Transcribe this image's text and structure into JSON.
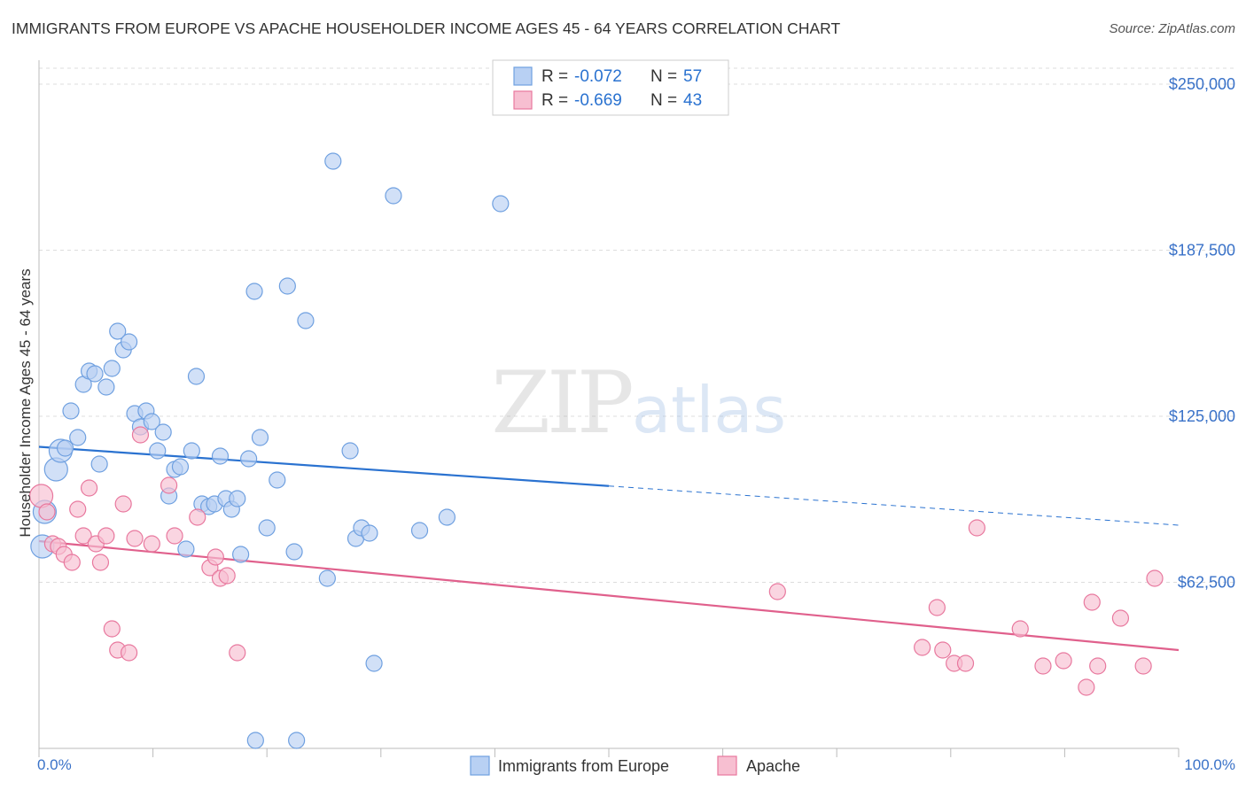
{
  "title": "IMMIGRANTS FROM EUROPE VS APACHE HOUSEHOLDER INCOME AGES 45 - 64 YEARS CORRELATION CHART",
  "source": "Source: ZipAtlas.com",
  "watermark": {
    "zip": "ZIP",
    "atlas": "atlas"
  },
  "colors": {
    "blue": "#6fa0e0",
    "blue_fill": "#b8d0f3",
    "blue_line": "#2a72d0",
    "pink": "#e8789e",
    "pink_fill": "#f7bfd1",
    "pink_line": "#e0608c",
    "axis_text": "#3a72c8",
    "grid": "#dddddd"
  },
  "legend": {
    "items": [
      {
        "r_label": "R = ",
        "r_value": "-0.072",
        "n_label": "N = ",
        "n_value": "57",
        "color": "blue"
      },
      {
        "r_label": "R = ",
        "r_value": "-0.669",
        "n_label": "N = ",
        "n_value": "43",
        "color": "pink"
      }
    ]
  },
  "bottom_legend": [
    "Immigrants from Europe",
    "Apache"
  ],
  "chart_data": {
    "type": "scatter",
    "title": "IMMIGRANTS FROM EUROPE VS APACHE HOUSEHOLDER INCOME AGES 45 - 64 YEARS CORRELATION CHART",
    "xlabel": "",
    "ylabel": "Householder Income Ages 45 - 64 years",
    "xlim": [
      0,
      100
    ],
    "ylim": [
      0,
      256000
    ],
    "x_tick_labels": [
      "0.0%",
      "100.0%"
    ],
    "y_ticks": [
      62500,
      125000,
      187500,
      250000
    ],
    "y_tick_labels": [
      "$62,500",
      "$125,000",
      "$187,500",
      "$250,000"
    ],
    "grid": true,
    "series": [
      {
        "name": "Immigrants from Europe",
        "color": "blue",
        "trend": {
          "x0": 0,
          "y0": 113500,
          "x1": 100,
          "y1": 84000,
          "solid_until": 50
        },
        "points": [
          {
            "x": 0.3,
            "y": 76000,
            "big": 1
          },
          {
            "x": 0.5,
            "y": 89000,
            "big": 1
          },
          {
            "x": 1.5,
            "y": 105000,
            "big": 1
          },
          {
            "x": 1.9,
            "y": 112000,
            "big": 1
          },
          {
            "x": 2.3,
            "y": 113000
          },
          {
            "x": 2.8,
            "y": 127000
          },
          {
            "x": 3.4,
            "y": 117000
          },
          {
            "x": 3.9,
            "y": 137000
          },
          {
            "x": 4.4,
            "y": 142000
          },
          {
            "x": 4.9,
            "y": 141000
          },
          {
            "x": 5.3,
            "y": 107000
          },
          {
            "x": 5.9,
            "y": 136000
          },
          {
            "x": 6.4,
            "y": 143000
          },
          {
            "x": 6.9,
            "y": 157000
          },
          {
            "x": 7.4,
            "y": 150000
          },
          {
            "x": 7.9,
            "y": 153000
          },
          {
            "x": 8.4,
            "y": 126000
          },
          {
            "x": 8.9,
            "y": 121000
          },
          {
            "x": 9.4,
            "y": 127000
          },
          {
            "x": 9.9,
            "y": 123000
          },
          {
            "x": 10.4,
            "y": 112000
          },
          {
            "x": 10.9,
            "y": 119000
          },
          {
            "x": 11.4,
            "y": 95000
          },
          {
            "x": 11.9,
            "y": 105000
          },
          {
            "x": 12.4,
            "y": 106000
          },
          {
            "x": 12.9,
            "y": 75000
          },
          {
            "x": 13.4,
            "y": 112000
          },
          {
            "x": 13.8,
            "y": 140000
          },
          {
            "x": 14.3,
            "y": 92000
          },
          {
            "x": 14.9,
            "y": 91000
          },
          {
            "x": 15.4,
            "y": 92000
          },
          {
            "x": 15.9,
            "y": 110000
          },
          {
            "x": 16.4,
            "y": 94000
          },
          {
            "x": 16.9,
            "y": 90000
          },
          {
            "x": 17.4,
            "y": 94000
          },
          {
            "x": 17.7,
            "y": 73000
          },
          {
            "x": 18.4,
            "y": 109000
          },
          {
            "x": 18.9,
            "y": 172000
          },
          {
            "x": 19.4,
            "y": 117000
          },
          {
            "x": 20.0,
            "y": 83000
          },
          {
            "x": 20.9,
            "y": 101000
          },
          {
            "x": 21.8,
            "y": 174000
          },
          {
            "x": 22.4,
            "y": 74000
          },
          {
            "x": 23.4,
            "y": 161000
          },
          {
            "x": 25.3,
            "y": 64000
          },
          {
            "x": 25.8,
            "y": 221000
          },
          {
            "x": 27.3,
            "y": 112000
          },
          {
            "x": 27.8,
            "y": 79000
          },
          {
            "x": 28.3,
            "y": 83000
          },
          {
            "x": 29.0,
            "y": 81000
          },
          {
            "x": 29.4,
            "y": 32000
          },
          {
            "x": 31.1,
            "y": 208000
          },
          {
            "x": 33.4,
            "y": 82000
          },
          {
            "x": 35.8,
            "y": 87000
          },
          {
            "x": 40.5,
            "y": 205000
          },
          {
            "x": 19.0,
            "y": 3000
          },
          {
            "x": 22.6,
            "y": 3000
          }
        ]
      },
      {
        "name": "Apache",
        "color": "pink",
        "trend": {
          "x0": 0,
          "y0": 78000,
          "x1": 100,
          "y1": 37000,
          "solid_until": 100
        },
        "points": [
          {
            "x": 0.2,
            "y": 95000,
            "big": 1
          },
          {
            "x": 0.7,
            "y": 89000
          },
          {
            "x": 1.2,
            "y": 77000
          },
          {
            "x": 1.7,
            "y": 76000
          },
          {
            "x": 2.2,
            "y": 73000
          },
          {
            "x": 2.9,
            "y": 70000
          },
          {
            "x": 3.4,
            "y": 90000
          },
          {
            "x": 3.9,
            "y": 80000
          },
          {
            "x": 4.4,
            "y": 98000
          },
          {
            "x": 5.0,
            "y": 77000
          },
          {
            "x": 5.4,
            "y": 70000
          },
          {
            "x": 5.9,
            "y": 80000
          },
          {
            "x": 6.4,
            "y": 45000
          },
          {
            "x": 6.9,
            "y": 37000
          },
          {
            "x": 7.4,
            "y": 92000
          },
          {
            "x": 7.9,
            "y": 36000
          },
          {
            "x": 8.4,
            "y": 79000
          },
          {
            "x": 8.9,
            "y": 118000
          },
          {
            "x": 9.9,
            "y": 77000
          },
          {
            "x": 11.4,
            "y": 99000
          },
          {
            "x": 11.9,
            "y": 80000
          },
          {
            "x": 13.9,
            "y": 87000
          },
          {
            "x": 15.0,
            "y": 68000
          },
          {
            "x": 15.5,
            "y": 72000
          },
          {
            "x": 15.9,
            "y": 64000
          },
          {
            "x": 16.5,
            "y": 65000
          },
          {
            "x": 17.4,
            "y": 36000
          },
          {
            "x": 64.8,
            "y": 59000
          },
          {
            "x": 77.5,
            "y": 38000
          },
          {
            "x": 78.8,
            "y": 53000
          },
          {
            "x": 79.3,
            "y": 37000
          },
          {
            "x": 80.3,
            "y": 32000
          },
          {
            "x": 81.3,
            "y": 32000
          },
          {
            "x": 82.3,
            "y": 83000
          },
          {
            "x": 86.1,
            "y": 45000
          },
          {
            "x": 88.1,
            "y": 31000
          },
          {
            "x": 89.9,
            "y": 33000
          },
          {
            "x": 91.9,
            "y": 23000
          },
          {
            "x": 92.4,
            "y": 55000
          },
          {
            "x": 92.9,
            "y": 31000
          },
          {
            "x": 94.9,
            "y": 49000
          },
          {
            "x": 96.9,
            "y": 31000
          },
          {
            "x": 97.9,
            "y": 64000
          }
        ]
      }
    ]
  }
}
